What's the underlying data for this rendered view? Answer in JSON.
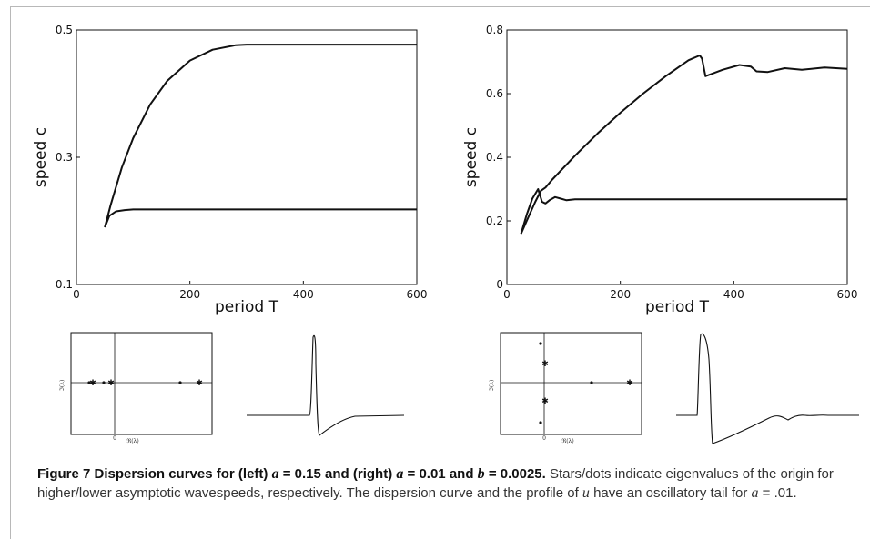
{
  "figure": {
    "caption_label": "Figure 7",
    "caption_title_a": "Dispersion curves for (left) ",
    "caption_var_a": "a",
    "caption_val_left": " = 0.15 and (right) ",
    "caption_val_right": " = 0.01 and ",
    "caption_var_b": "b",
    "caption_val_b": " = 0.0025.",
    "caption_body_1": " Stars/dots indicate eigenvalues of the origin for higher/lower asymptotic wavespeeds, respectively. The dispersion curve and the profile of ",
    "caption_var_u": "u",
    "caption_body_2": " have an oscillatory tail for ",
    "caption_body_3": " = .01."
  },
  "chart_data": [
    {
      "type": "line",
      "panel": "left",
      "xlabel": "period T",
      "ylabel": "speed c",
      "xlim": [
        0,
        600
      ],
      "ylim": [
        0.1,
        0.5
      ],
      "xticks": [
        0,
        200,
        400,
        600
      ],
      "yticks": [
        0.1,
        0.3,
        0.5
      ],
      "xtick_labels": [
        "0",
        "200",
        "400",
        "600"
      ],
      "ytick_labels": [
        "0.1",
        "0.3",
        "0.5"
      ],
      "series": [
        {
          "x": [
            50,
            60,
            80,
            100,
            130,
            160,
            200,
            240,
            280,
            300,
            350,
            400,
            450,
            500,
            550,
            600
          ],
          "y": [
            0.19,
            0.224,
            0.284,
            0.33,
            0.383,
            0.42,
            0.452,
            0.469,
            0.476,
            0.477,
            0.477,
            0.477,
            0.477,
            0.477,
            0.477,
            0.477
          ]
        },
        {
          "x": [
            50,
            58,
            70,
            85,
            100,
            150,
            200,
            300,
            400,
            500,
            600
          ],
          "y": [
            0.19,
            0.208,
            0.215,
            0.217,
            0.218,
            0.218,
            0.218,
            0.218,
            0.218,
            0.218,
            0.218
          ]
        }
      ]
    },
    {
      "type": "line",
      "panel": "right",
      "xlabel": "period T",
      "ylabel": "speed c",
      "xlim": [
        0,
        600
      ],
      "ylim": [
        0,
        0.8
      ],
      "xticks": [
        0,
        200,
        400,
        600
      ],
      "yticks": [
        0,
        0.2,
        0.4,
        0.6,
        0.8
      ],
      "xtick_labels": [
        "0",
        "200",
        "400",
        "600"
      ],
      "ytick_labels": [
        "0",
        "0.2",
        "0.4",
        "0.6",
        "0.8"
      ],
      "series": [
        {
          "x": [
            25,
            30,
            40,
            50,
            60,
            68,
            80,
            120,
            160,
            200,
            240,
            280,
            320,
            340,
            344,
            350,
            380,
            410,
            430,
            440,
            460,
            490,
            520,
            560,
            600
          ],
          "y": [
            0.16,
            0.18,
            0.22,
            0.26,
            0.295,
            0.305,
            0.33,
            0.405,
            0.475,
            0.54,
            0.6,
            0.655,
            0.705,
            0.72,
            0.71,
            0.655,
            0.675,
            0.69,
            0.685,
            0.67,
            0.668,
            0.68,
            0.675,
            0.682,
            0.678
          ]
        },
        {
          "x": [
            25,
            35,
            45,
            55,
            62,
            68,
            75,
            85,
            95,
            105,
            120,
            200,
            300,
            400,
            500,
            600
          ],
          "y": [
            0.16,
            0.22,
            0.27,
            0.3,
            0.26,
            0.255,
            0.265,
            0.275,
            0.27,
            0.265,
            0.268,
            0.268,
            0.268,
            0.268,
            0.268,
            0.268
          ]
        }
      ]
    }
  ],
  "insets": {
    "left_eigen": {
      "ylabel": "ℑ(λ)",
      "xlabel": "ℜ(λ)",
      "origin_label": "0"
    },
    "right_eigen": {
      "ylabel": "ℑ(λ)",
      "xlabel": "ℜ(λ)",
      "origin_label": "0"
    }
  }
}
